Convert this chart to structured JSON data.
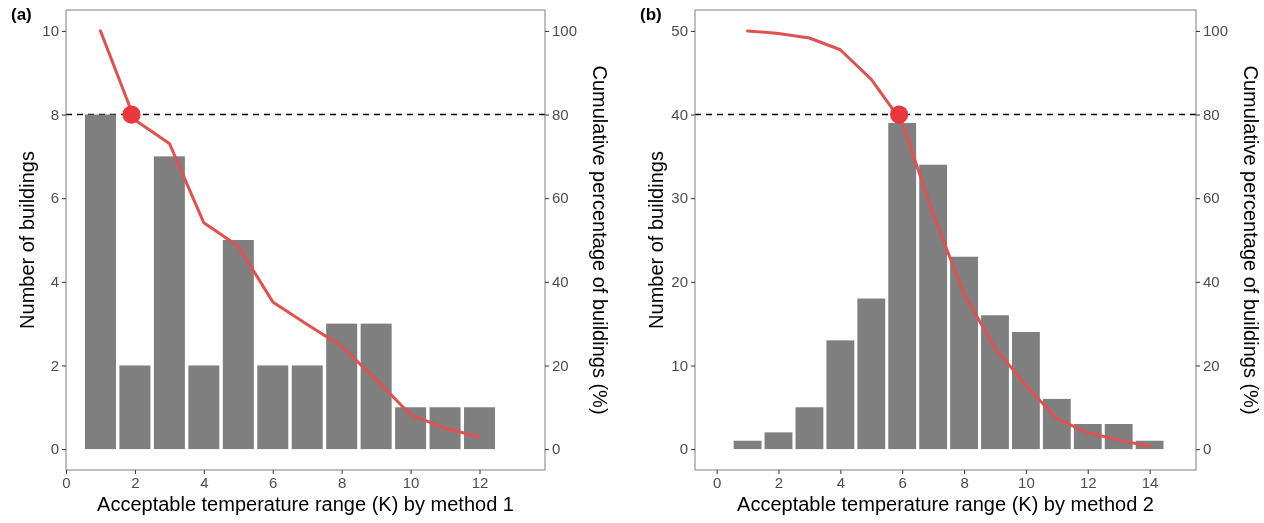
{
  "chart_data": [
    {
      "type": "bar",
      "title": "(a)",
      "xlabel": "Acceptable temperature range (K) by method 1",
      "ylabel": "Number of buildings",
      "y2label": "Cumulative percentage of buildings (%)",
      "x": [
        1,
        2,
        3,
        4,
        5,
        6,
        7,
        8,
        9,
        10,
        11,
        12
      ],
      "xlim": [
        0,
        13.9
      ],
      "xticks": [
        0,
        2,
        4,
        6,
        8,
        10,
        12
      ],
      "ylim": [
        -0.5,
        10.5
      ],
      "yticks": [
        0,
        2,
        4,
        6,
        8,
        10
      ],
      "y2lim": [
        -5,
        105
      ],
      "y2ticks": [
        0,
        20,
        40,
        60,
        80,
        100
      ],
      "grid": false,
      "series": [
        {
          "color": "#7f7f7f",
          "values": [
            8,
            2,
            7,
            2,
            5,
            2,
            2,
            3,
            3,
            1,
            1,
            1
          ]
        },
        {
          "type": "line",
          "axis": "y2",
          "color": "#e05252",
          "values": [
            100,
            78.7,
            73.1,
            54.1,
            48.5,
            35.2,
            29.8,
            24.6,
            16.6,
            8.2,
            5,
            2.9
          ]
        },
        {
          "type": "scatter",
          "axis": "y2",
          "color": "#e8383d",
          "x": [
            1.9
          ],
          "values": [
            80
          ],
          "marker": "circle"
        }
      ],
      "ref_lines": [
        {
          "axis": "y2",
          "value": 80,
          "color": "#000000",
          "line_style": "dashed"
        }
      ]
    },
    {
      "type": "bar",
      "title": "(b)",
      "xlabel": "Acceptable temperature range (K) by method 2",
      "ylabel": "Number of buildings",
      "y2label": "Cumulative percentage of buildings (%)",
      "x": [
        1,
        2,
        3,
        4,
        5,
        6,
        7,
        8,
        9,
        10,
        11,
        12,
        13,
        14
      ],
      "xlim": [
        -0.7,
        15.5
      ],
      "xticks": [
        0,
        2,
        4,
        6,
        8,
        10,
        12,
        14
      ],
      "ylim": [
        -2.5,
        52.5
      ],
      "yticks": [
        0,
        10,
        20,
        30,
        40,
        50
      ],
      "y2lim": [
        -5,
        105
      ],
      "y2ticks": [
        0,
        20,
        40,
        60,
        80,
        100
      ],
      "grid": false,
      "series": [
        {
          "color": "#7f7f7f",
          "values": [
            1,
            2,
            5,
            13,
            18,
            39,
            34,
            23,
            16,
            14,
            6,
            3,
            3,
            1
          ]
        },
        {
          "type": "line",
          "axis": "y2",
          "color": "#e05252",
          "values": [
            100,
            99.4,
            98.3,
            95.5,
            88.4,
            78.1,
            56.2,
            37.1,
            24.2,
            15.2,
            7.3,
            3.9,
            2.2,
            0.6
          ]
        },
        {
          "type": "scatter",
          "axis": "y2",
          "color": "#e8383d",
          "x": [
            5.9
          ],
          "values": [
            80
          ],
          "marker": "circle"
        }
      ],
      "ref_lines": [
        {
          "axis": "y2",
          "value": 80,
          "color": "#000000",
          "line_style": "dashed"
        }
      ]
    }
  ]
}
